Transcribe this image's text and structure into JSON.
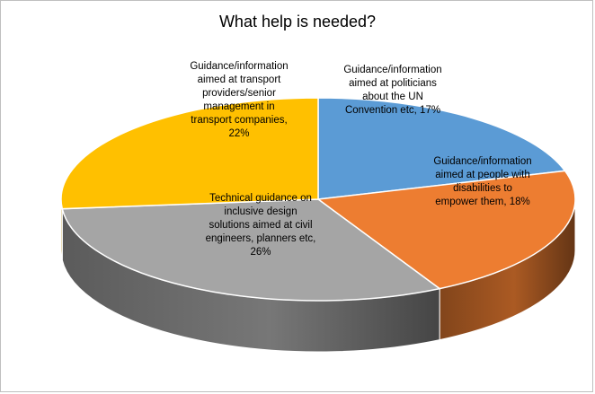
{
  "chart_data": {
    "type": "pie",
    "style": "3d",
    "title": "What help is needed?",
    "slices": [
      {
        "lines": [
          "Guidance/information",
          "aimed at politicians",
          "about the UN",
          "Convention etc, 17%"
        ],
        "value": 17,
        "color": "#5b9bd5"
      },
      {
        "lines": [
          "Guidance/information",
          "aimed at people with",
          "disabilities to",
          "empower them, 18%"
        ],
        "value": 18,
        "color": "#ed7d31"
      },
      {
        "lines": [
          "Technical guidance on",
          "inclusive design",
          "solutions aimed at civil",
          "engineers, planners etc,",
          "26%"
        ],
        "value": 26,
        "color": "#a5a5a5"
      },
      {
        "lines": [
          "Guidance/information",
          "aimed at transport",
          "providers/senior",
          "management in",
          "transport companies,",
          "22%"
        ],
        "value": 22,
        "color": "#ffc000"
      }
    ]
  }
}
